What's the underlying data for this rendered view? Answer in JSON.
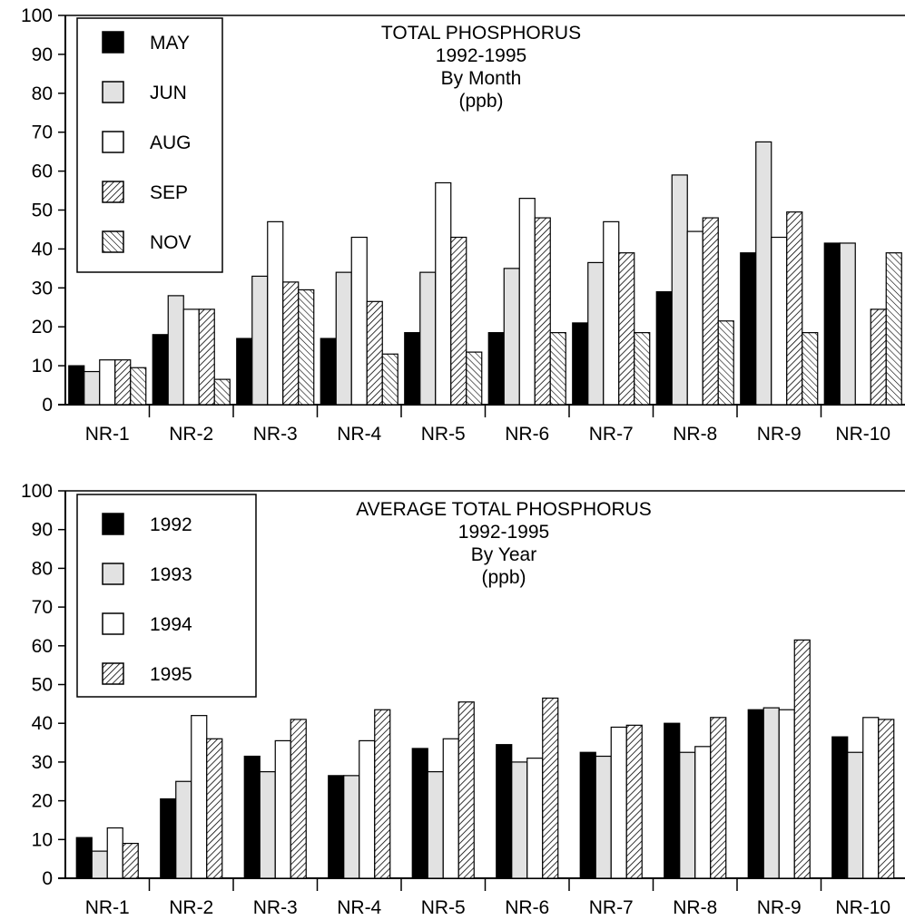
{
  "chart_data": [
    {
      "type": "bar",
      "title": [
        "TOTAL PHOSPHORUS",
        "1992-1995",
        "By Month",
        "(ppb)"
      ],
      "categories": [
        "NR-1",
        "NR-2",
        "NR-3",
        "NR-4",
        "NR-5",
        "NR-6",
        "NR-7",
        "NR-8",
        "NR-9",
        "NR-10"
      ],
      "ylim": [
        0,
        100
      ],
      "yticks": [
        0,
        10,
        20,
        30,
        40,
        50,
        60,
        70,
        80,
        90,
        100
      ],
      "grid": false,
      "legend_position": "top-left",
      "series": [
        {
          "name": "MAY",
          "pattern": "solid-black",
          "values": [
            10,
            18,
            17,
            17,
            18.5,
            18.5,
            21,
            29,
            39,
            41.5
          ]
        },
        {
          "name": "JUN",
          "pattern": "light-gray",
          "values": [
            8.5,
            28,
            33,
            34,
            34,
            35,
            36.5,
            59,
            67.5,
            41.5
          ]
        },
        {
          "name": "AUG",
          "pattern": "white",
          "values": [
            11.5,
            24.5,
            47,
            43,
            57,
            53,
            47,
            44.5,
            43,
            null
          ]
        },
        {
          "name": "SEP",
          "pattern": "diagonal-hatch",
          "values": [
            11.5,
            24.5,
            31.5,
            26.5,
            43,
            48,
            39,
            48,
            49.5,
            24.5
          ]
        },
        {
          "name": "NOV",
          "pattern": "cross-hatch",
          "values": [
            9.5,
            6.5,
            29.5,
            13,
            13.5,
            18.5,
            18.5,
            21.5,
            18.5,
            39
          ]
        }
      ]
    },
    {
      "type": "bar",
      "title": [
        "AVERAGE TOTAL PHOSPHORUS",
        "1992-1995",
        "By Year",
        "(ppb)"
      ],
      "categories": [
        "NR-1",
        "NR-2",
        "NR-3",
        "NR-4",
        "NR-5",
        "NR-6",
        "NR-7",
        "NR-8",
        "NR-9",
        "NR-10"
      ],
      "ylim": [
        0,
        100
      ],
      "yticks": [
        0,
        10,
        20,
        30,
        40,
        50,
        60,
        70,
        80,
        90,
        100
      ],
      "grid": false,
      "legend_position": "top-left",
      "series": [
        {
          "name": "1992",
          "pattern": "solid-black",
          "values": [
            10.5,
            20.5,
            31.5,
            26.5,
            33.5,
            34.5,
            32.5,
            40,
            43.5,
            36.5
          ]
        },
        {
          "name": "1993",
          "pattern": "light-gray",
          "values": [
            7,
            25,
            27.5,
            26.5,
            27.5,
            30,
            31.5,
            32.5,
            44,
            32.5
          ]
        },
        {
          "name": "1994",
          "pattern": "white",
          "values": [
            13,
            42,
            35.5,
            35.5,
            36,
            31,
            39,
            34,
            43.5,
            41.5
          ]
        },
        {
          "name": "1995",
          "pattern": "diagonal-hatch",
          "values": [
            9,
            36,
            41,
            43.5,
            45.5,
            46.5,
            39.5,
            41.5,
            61.5,
            41
          ]
        }
      ]
    }
  ]
}
